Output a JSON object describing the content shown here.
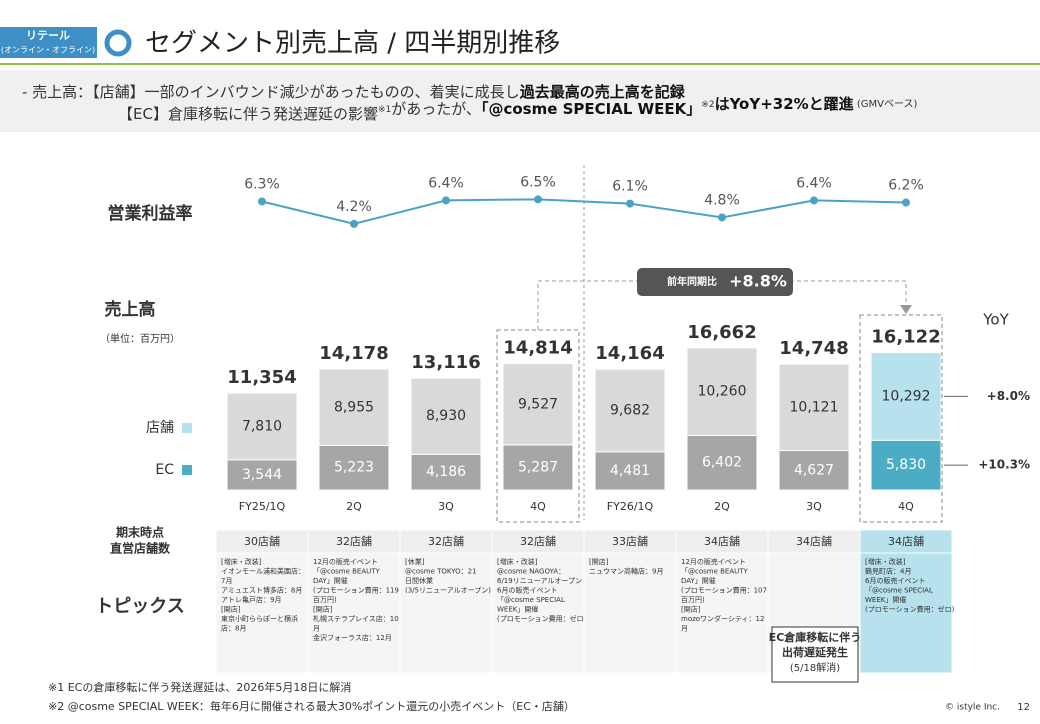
{
  "header": {
    "tag": "リテール",
    "tag_sub": "(オンライン・オフライン)",
    "title": "セグメント別売上高 / 四半期別推移"
  },
  "summary": [
    [
      {
        "text": "-  売上高：【店舗】一部のインバウンド減少があったものの、着実に成長し",
        "style": "normal"
      },
      {
        "text": "過去最高の売上高を記録",
        "style": "bold"
      }
    ],
    [
      {
        "text": "【EC】倉庫移転に伴う発送遅延の影響",
        "style": "normal"
      },
      {
        "text": "※1",
        "style": "sup"
      },
      {
        "text": "があったが、",
        "style": "normal"
      },
      {
        "text": "「@cosme SPECIAL WEEK」",
        "style": "bold"
      },
      {
        "text": "※2",
        "style": "sup"
      },
      {
        "text": "はYoY+32%と躍進",
        "style": "bold"
      },
      {
        "text": " (GMVベース)",
        "style": "small"
      }
    ]
  ],
  "chart_data": [
    {
      "type": "line",
      "title": "営業利益率",
      "values": [
        6.3,
        4.2,
        6.4,
        6.5,
        6.1,
        4.8,
        6.4,
        6.2
      ],
      "value_labels": [
        "6.3%",
        "4.2%",
        "6.4%",
        "6.5%",
        "6.1%",
        "4.8%",
        "6.4%",
        "6.2%"
      ],
      "color": "#4ba3c3",
      "ylim": [
        4,
        7
      ]
    },
    {
      "type": "bar",
      "stacked": true,
      "title": "売上高",
      "subtitle": "（単位：百万円）",
      "categories": [
        "FY25/1Q",
        "2Q",
        "3Q",
        "4Q",
        "FY26/1Q",
        "2Q",
        "3Q",
        "4Q"
      ],
      "ylim": [
        0,
        17000
      ],
      "series": [
        {
          "name": "EC",
          "color": "#4bacc6",
          "colors": [
            "#a6a6a6",
            "#a6a6a6",
            "#a6a6a6",
            "#a6a6a6",
            "#a6a6a6",
            "#a6a6a6",
            "#a6a6a6",
            "#4bacc6"
          ],
          "values": [
            3544,
            5223,
            4186,
            5287,
            4481,
            6402,
            4627,
            5830
          ],
          "value_labels": [
            "3,544",
            "5,223",
            "4,186",
            "5,287",
            "4,481",
            "6,402",
            "4,627",
            "5,830"
          ],
          "yoy": 10.3,
          "yoy_label": "+10.3%"
        },
        {
          "name": "店舗",
          "color": "#b7e1ec",
          "colors": [
            "#d9d9d9",
            "#d9d9d9",
            "#d9d9d9",
            "#d9d9d9",
            "#d9d9d9",
            "#d9d9d9",
            "#d9d9d9",
            "#b7e1ec"
          ],
          "values": [
            7810,
            8955,
            8930,
            9527,
            9682,
            10260,
            10121,
            10292
          ],
          "value_labels": [
            "7,810",
            "8,955",
            "8,930",
            "9,527",
            "9,682",
            "10,260",
            "10,121",
            "10,292"
          ],
          "yoy": 8.0,
          "yoy_label": "+8.0%"
        }
      ],
      "totals": [
        11354,
        14178,
        13116,
        14814,
        14164,
        16662,
        14748,
        16122
      ],
      "total_labels": [
        "11,354",
        "14,178",
        "13,116",
        "14,814",
        "14,164",
        "16,662",
        "14,748",
        "16,122"
      ],
      "yoy_title": "YoY",
      "annotation": {
        "label": "前年同期比",
        "value": 8.8,
        "value_label": "+8.8%"
      }
    }
  ],
  "table": {
    "store_title": [
      "期末時点",
      "直営店舗数"
    ],
    "stores": [
      "30店舗",
      "32店舗",
      "32店舗",
      "32店舗",
      "33店舗",
      "34店舗",
      "34店舗",
      "34店舗"
    ],
    "topics_title": "トピックス",
    "topics": [
      [
        "[増床・改装]",
        "イオンモール浦和美園店：",
        "7月",
        "アミュエスト博多店：8月",
        "アトレ亀戸店：9月",
        "[開店]",
        "東京小町ららぽーと横浜",
        "店：8月"
      ],
      [
        "12月の販売イベント",
        "「@cosme BEAUTY",
        "DAY」開催",
        "(プロモーション費用：119",
        "百万円)",
        "[開店]",
        "札幌ステラプレイス店：10",
        "月",
        "金沢フォーラス店：12月"
      ],
      [
        "[休業]",
        "@cosme TOKYO：21",
        "日間休業",
        "(3/5リニューアルオープン)"
      ],
      [
        "[増床・改装]",
        "@cosme NAGOYA：",
        "6/19リニューアルオープン",
        "6月の販売イベント",
        "「@cosme SPECIAL",
        "WEEK」開催",
        "(プロモーション費用：ゼロ)"
      ],
      [
        "[開店]",
        "ニュウマン高輪店：9月"
      ],
      [
        "12月の販売イベント",
        "「@cosme BEAUTY",
        "DAY」開催",
        "(プロモーション費用：107",
        "百万円)",
        "[開店]",
        "mozoワンダーシティ：12",
        "月"
      ],
      [],
      [
        "[増床・改装]",
        "鶴見町店：4月",
        "6月の販売イベント",
        "「@cosme SPECIAL",
        "WEEK」開催",
        "(プロモーション費用：ゼロ)"
      ]
    ],
    "callout": [
      "EC倉庫移転に伴う",
      "出荷遅延発生",
      "(5/18解消)"
    ]
  },
  "footnotes": [
    "※1  ECの倉庫移転に伴う発送遅延は、2026年5月18日に解消",
    "※2  @cosme SPECIAL WEEK：毎年6月に開催される最大30%ポイント還元の小売イベント（EC・店舗）"
  ],
  "footer": {
    "copyright": "© istyle Inc.",
    "page": "12"
  }
}
